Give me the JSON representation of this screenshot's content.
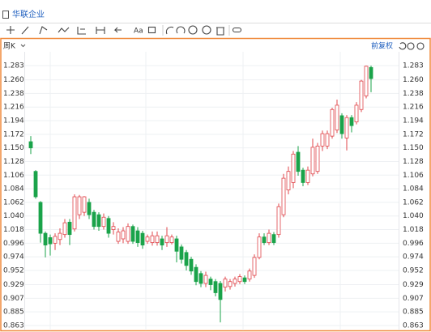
{
  "header": {
    "title": "华联企业"
  },
  "toolbar": {
    "text_tool": "Aa"
  },
  "chart_data": {
    "type": "candlestick",
    "period": "周K",
    "adjust": "前复权",
    "up_color": "#e0454a",
    "down_color": "#1aa34a",
    "ylim": [
      0.858,
      1.305
    ],
    "yticks": [
      {
        "value": 1.283,
        "label": "1.283"
      },
      {
        "value": 1.26,
        "label": "1.260"
      },
      1.238,
      1.216,
      1.194,
      1.172,
      {
        "value": 1.15,
        "label": "1.150"
      },
      1.128,
      1.106,
      1.084,
      1.062,
      {
        "value": 1.04,
        "label": "1.040"
      },
      1.018,
      0.996,
      0.974,
      0.952,
      0.929,
      0.907,
      0.885,
      0.863
    ],
    "open": [
      1.16,
      1.112,
      1.062,
      1.012,
      1.005,
      0.996,
      1.002,
      1.01,
      1.03,
      1.019,
      1.042,
      1.046,
      1.062,
      1.046,
      1.042,
      1.023,
      1.036,
      1.018,
      0.999,
      1.003,
      0.999,
      1.023,
      1.016,
      1.012,
      0.999,
      0.997,
      0.997,
      1.003,
      0.997,
      0.997,
      1.003,
      0.99,
      0.981,
      0.97,
      0.957,
      0.947,
      0.931,
      0.938,
      0.934,
      0.931,
      0.925,
      0.926,
      0.931,
      0.934,
      0.94,
      0.938,
      0.944,
      0.973,
      1.006,
      0.997,
      1.01,
      1.01,
      1.042,
      1.082,
      1.094,
      1.143,
      1.114,
      1.094,
      1.108,
      1.112,
      1.153,
      1.153,
      1.169,
      1.179,
      1.202,
      1.166,
      1.199,
      1.192,
      1.212,
      1.234,
      1.28
    ],
    "high": [
      1.169,
      1.114,
      1.064,
      1.015,
      1.01,
      1.012,
      1.02,
      1.035,
      1.035,
      1.075,
      1.074,
      1.072,
      1.068,
      1.05,
      1.046,
      1.044,
      1.04,
      1.03,
      1.02,
      1.022,
      1.028,
      1.026,
      1.022,
      1.016,
      1.01,
      1.015,
      1.015,
      1.008,
      1.022,
      1.01,
      1.008,
      0.994,
      0.985,
      0.974,
      0.962,
      0.951,
      0.95,
      0.942,
      0.938,
      0.935,
      0.942,
      0.938,
      0.942,
      0.946,
      0.944,
      0.955,
      0.978,
      1.012,
      1.012,
      1.018,
      1.014,
      1.06,
      1.108,
      1.12,
      1.145,
      1.153,
      1.118,
      1.12,
      1.165,
      1.158,
      1.178,
      1.178,
      1.215,
      1.228,
      1.206,
      1.203,
      1.203,
      1.224,
      1.26,
      1.283,
      1.283
    ],
    "low": [
      1.14,
      1.068,
      0.997,
      0.973,
      0.976,
      0.985,
      0.993,
      1.005,
      0.993,
      1.015,
      1.035,
      1.04,
      1.035,
      1.018,
      1.016,
      1.018,
      1.005,
      1.01,
      0.995,
      0.996,
      0.995,
      0.995,
      0.99,
      0.987,
      0.995,
      0.992,
      0.992,
      0.985,
      0.99,
      0.994,
      0.965,
      0.963,
      0.952,
      0.945,
      0.928,
      0.925,
      0.925,
      0.92,
      0.91,
      0.868,
      0.918,
      0.921,
      0.926,
      0.93,
      0.93,
      0.934,
      0.94,
      0.97,
      0.993,
      0.993,
      0.993,
      1.005,
      1.038,
      1.075,
      1.085,
      1.105,
      1.088,
      1.09,
      1.104,
      1.108,
      1.145,
      1.148,
      1.165,
      1.174,
      1.165,
      1.146,
      1.175,
      1.188,
      1.208,
      1.23,
      1.24
    ],
    "close": [
      1.15,
      1.071,
      1.012,
      0.993,
      0.995,
      1.007,
      1.012,
      1.029,
      1.01,
      1.071,
      1.071,
      1.071,
      1.042,
      1.023,
      1.023,
      1.038,
      1.012,
      1.023,
      1.014,
      1.016,
      1.023,
      0.999,
      0.997,
      0.993,
      1.006,
      1.008,
      1.008,
      0.993,
      1.008,
      1.006,
      0.983,
      0.97,
      0.96,
      0.951,
      0.934,
      0.931,
      0.944,
      0.929,
      0.916,
      0.905,
      0.938,
      0.934,
      0.938,
      0.942,
      0.934,
      0.951,
      0.973,
      1.006,
      0.997,
      1.012,
      0.997,
      1.055,
      1.101,
      1.112,
      1.14,
      1.112,
      1.094,
      1.114,
      1.151,
      1.153,
      1.173,
      1.173,
      1.212,
      1.219,
      1.173,
      1.199,
      1.186,
      1.219,
      1.258,
      1.282,
      1.262
    ]
  }
}
